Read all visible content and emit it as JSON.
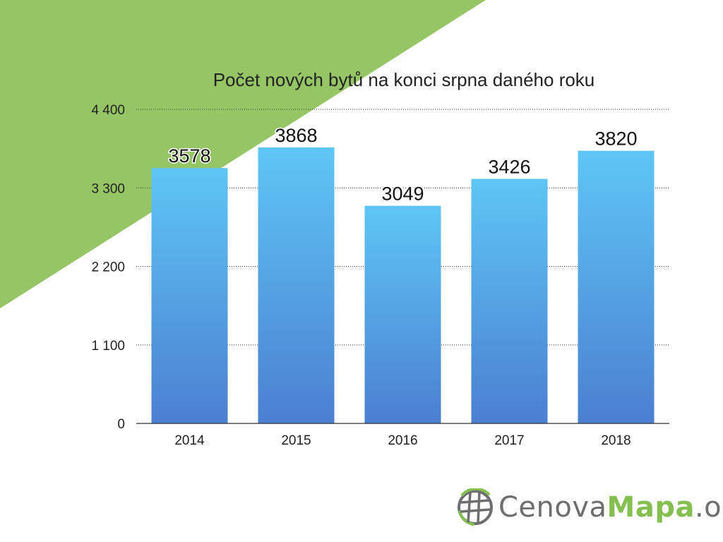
{
  "chart_data": {
    "type": "bar",
    "title": "Počet nových bytů na konci srpna daného roku",
    "xlabel": "",
    "ylabel": "",
    "categories": [
      "2014",
      "2015",
      "2016",
      "2017",
      "2018"
    ],
    "values": [
      3578,
      3868,
      3049,
      3426,
      3820
    ],
    "data_labels": [
      "3578",
      "3868",
      "3049",
      "3426",
      "3820"
    ],
    "ylim": [
      0,
      4400
    ],
    "yticks": [
      0,
      1100,
      2200,
      3300,
      4400
    ],
    "ytick_labels": [
      "0",
      "1 100",
      "2 200",
      "3 300",
      "4 400"
    ],
    "grid": true,
    "legend": "none",
    "bar_gradient": [
      "#5ec6f5",
      "#4b7fd1"
    ]
  },
  "background": {
    "accent_color": "#96c566"
  },
  "logo": {
    "icon": "globe-icon",
    "text_part1": "Cenova",
    "text_part2": "Mapa",
    "text_part3": ".org",
    "color_gray": "#6d6e70",
    "color_green": "#84bf4f"
  }
}
